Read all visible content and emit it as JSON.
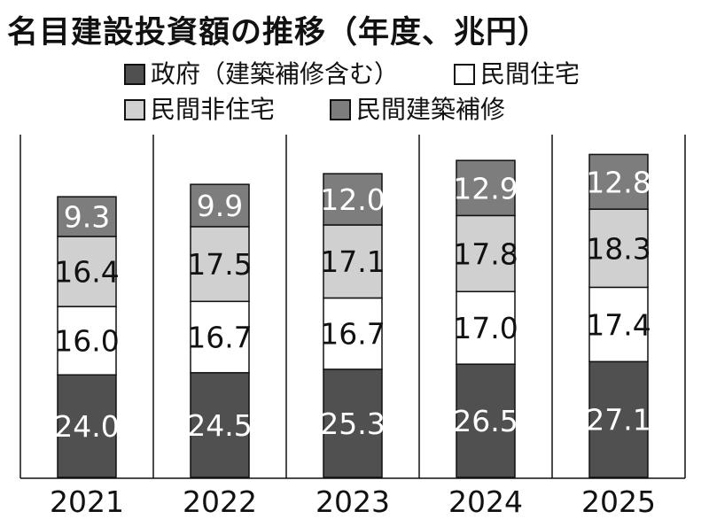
{
  "chart_data": {
    "type": "bar",
    "stacked": true,
    "title": "名目建設投資額の推移（年度、兆円）",
    "categories": [
      "2021",
      "2022",
      "2023",
      "2024",
      "2025"
    ],
    "series": [
      {
        "name": "政府（建築補修含む）",
        "values": [
          24.0,
          24.5,
          25.3,
          26.5,
          27.1
        ],
        "color": "#505050",
        "label_color": "#ffffff"
      },
      {
        "name": "民間住宅",
        "values": [
          16.0,
          16.7,
          16.7,
          17.0,
          17.4
        ],
        "color": "#ffffff",
        "label_color": "#111111"
      },
      {
        "name": "民間非住宅",
        "values": [
          16.4,
          17.5,
          17.1,
          17.8,
          18.3
        ],
        "color": "#d0d0d0",
        "label_color": "#111111"
      },
      {
        "name": "民間建築補修",
        "values": [
          9.3,
          9.9,
          12.0,
          12.9,
          12.8
        ],
        "color": "#7d7d7d",
        "label_color": "#ffffff"
      }
    ],
    "data_labels": [
      [
        "24.0",
        "24.5",
        "25.3",
        "26.5",
        "27.1"
      ],
      [
        "16.0",
        "16.7",
        "16.7",
        "17.0",
        "17.4"
      ],
      [
        "16.4",
        "17.5",
        "17.1",
        "17.8",
        "18.3"
      ],
      [
        "9.3",
        "9.9",
        "12.0",
        "12.9",
        "12.8"
      ]
    ],
    "ylim": [
      0,
      80
    ],
    "legend": "top",
    "grid": false
  }
}
